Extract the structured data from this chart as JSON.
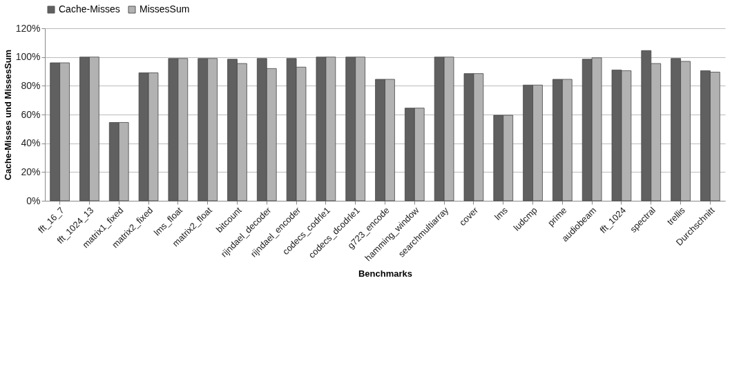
{
  "chart_data": {
    "type": "bar",
    "xlabel": "Benchmarks",
    "ylabel": "Cache-Misses und MissesSum",
    "categories": [
      "fft_16_7",
      "fft_1024_13",
      "matrix1_fixed",
      "matrix2_fixed",
      "lms_float",
      "matrix2_float",
      "bitcount",
      "rijndael_decoder",
      "rijndael_encoder",
      "codecs_codrle1",
      "codecs_dcodrle1",
      "g723_encode",
      "hamming_window",
      "searchmultiarray",
      "cover",
      "lms",
      "ludcmp",
      "prime",
      "audiobeam",
      "fft_1024",
      "spectral",
      "trellis",
      "Durchschnitt"
    ],
    "series": [
      {
        "name": "Cache-Misses",
        "color": "#606060",
        "values": [
          96,
          100,
          54.5,
          89,
          99,
          99,
          98.5,
          99,
          99,
          100,
          100,
          84.5,
          64.5,
          100,
          88.5,
          59.5,
          80.5,
          84.5,
          98.5,
          91,
          104.5,
          99,
          90.5
        ]
      },
      {
        "name": "MissesSum",
        "color": "#b2b2b2",
        "values": [
          96,
          100,
          54.5,
          89,
          99,
          99,
          95.5,
          92,
          93,
          100,
          100,
          84.5,
          64.5,
          100,
          88.5,
          59.5,
          80.5,
          84.5,
          99.5,
          90.5,
          95.5,
          97,
          89.5
        ]
      }
    ],
    "ylim": [
      0,
      120
    ],
    "yticks": [
      {
        "value": 0,
        "label": "0%"
      },
      {
        "value": 20,
        "label": "20%"
      },
      {
        "value": 40,
        "label": "40%"
      },
      {
        "value": 60,
        "label": "60%"
      },
      {
        "value": 80,
        "label": "80%"
      },
      {
        "value": 100,
        "label": "100%"
      },
      {
        "value": 120,
        "label": "120%"
      }
    ],
    "grid": "y",
    "legend": "top"
  }
}
